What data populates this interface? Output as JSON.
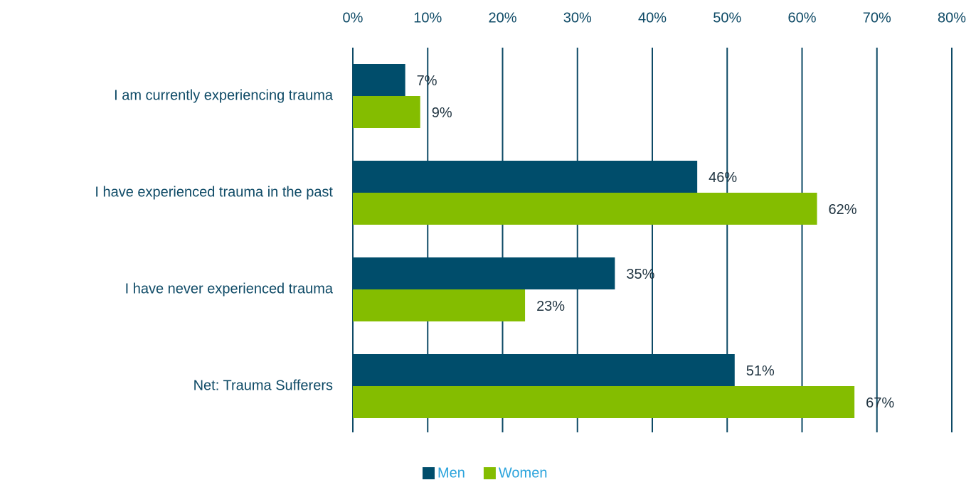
{
  "chart_data": {
    "type": "hbar",
    "categories": [
      "I am currently experiencing trauma",
      "I have experienced trauma in the past",
      "I have never experienced trauma",
      "Net: Trauma Sufferers"
    ],
    "series": [
      {
        "name": "Men",
        "color": "#004d6b",
        "values": [
          7,
          46,
          35,
          51
        ],
        "value_labels": [
          "7%",
          "46%",
          "35%",
          "51%"
        ]
      },
      {
        "name": "Women",
        "color": "#84bd00",
        "values": [
          9,
          62,
          23,
          67
        ],
        "value_labels": [
          "9%",
          "62%",
          "23%",
          "67%"
        ]
      }
    ],
    "xlim": [
      0,
      80
    ],
    "xticks": [
      {
        "value": 0,
        "label": "0%"
      },
      {
        "value": 10,
        "label": "10%"
      },
      {
        "value": 20,
        "label": "20%"
      },
      {
        "value": 30,
        "label": "30%"
      },
      {
        "value": 40,
        "label": "40%"
      },
      {
        "value": 50,
        "label": "50%"
      },
      {
        "value": 60,
        "label": "60%"
      },
      {
        "value": 70,
        "label": "70%"
      },
      {
        "value": 80,
        "label": "80%"
      }
    ],
    "grid": true,
    "legend": "bottom"
  }
}
